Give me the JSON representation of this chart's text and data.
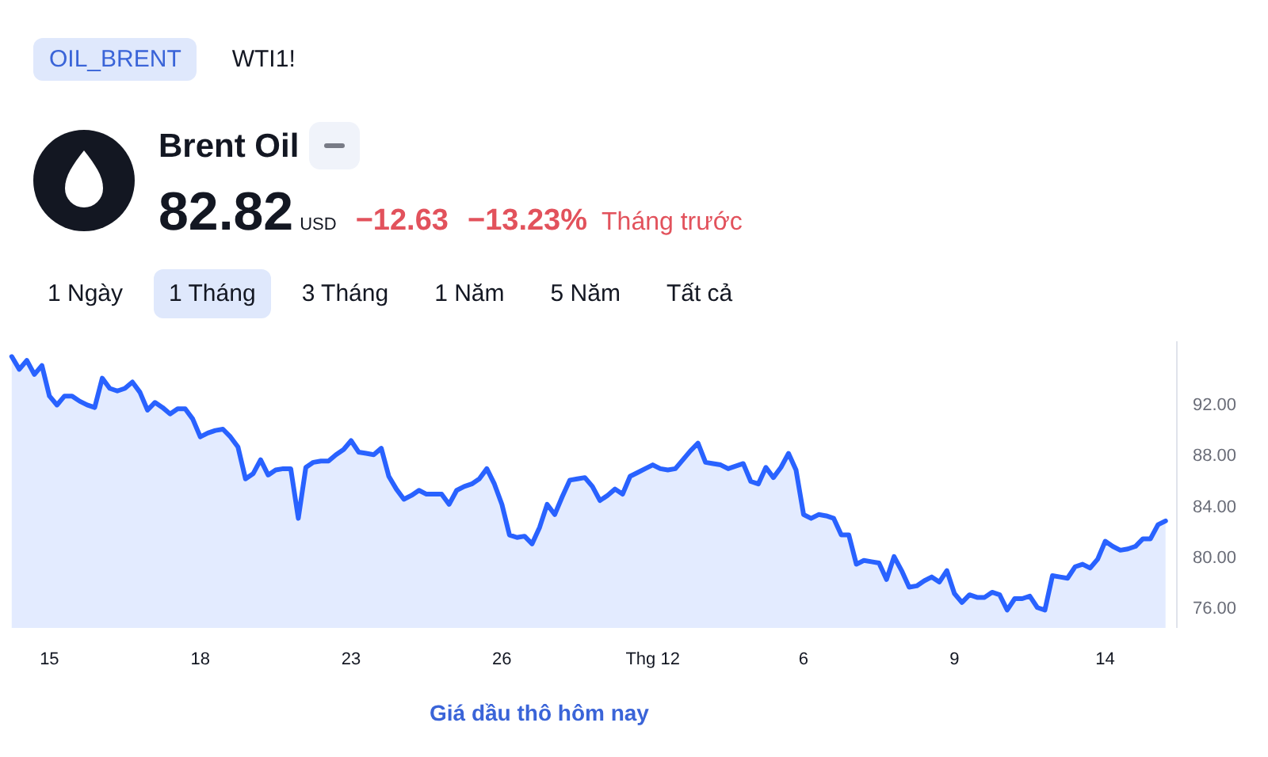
{
  "chart_data": {
    "type": "area",
    "title": "Brent Oil",
    "annotations": [
      "OIL_BRENT",
      "WTI1!",
      "82.82",
      "USD",
      "−12.63",
      "−13.23%",
      "Tháng trước",
      "1 Ngày",
      "1 Tháng",
      "3 Tháng",
      "1 Năm",
      "5 Năm",
      "Tất cả",
      "Giá dầu thô hôm nay"
    ],
    "color": "#2962ff",
    "grid": false,
    "ylim": [
      74.4,
      96.9
    ],
    "yticks": [
      {
        "value": 76,
        "label": "76.00"
      },
      {
        "value": 80,
        "label": "80.00"
      },
      {
        "value": 84,
        "label": "84.00"
      },
      {
        "value": 88,
        "label": "88.00"
      },
      {
        "value": 92,
        "label": "92.00"
      }
    ],
    "categories": [
      null,
      null,
      null,
      null,
      null,
      "15",
      null,
      null,
      null,
      null,
      null,
      null,
      null,
      null,
      null,
      null,
      null,
      null,
      null,
      null,
      null,
      null,
      null,
      null,
      null,
      "18",
      null,
      null,
      null,
      null,
      null,
      null,
      null,
      null,
      null,
      null,
      null,
      null,
      null,
      null,
      null,
      null,
      null,
      null,
      null,
      "23",
      null,
      null,
      null,
      null,
      null,
      null,
      null,
      null,
      null,
      null,
      null,
      null,
      null,
      null,
      null,
      null,
      null,
      null,
      null,
      "26",
      null,
      null,
      null,
      null,
      null,
      null,
      null,
      null,
      null,
      null,
      null,
      null,
      null,
      null,
      null,
      null,
      null,
      null,
      null,
      "Thg 12",
      null,
      null,
      null,
      null,
      null,
      null,
      null,
      null,
      null,
      null,
      null,
      null,
      null,
      null,
      null,
      null,
      null,
      null,
      null,
      "6",
      null,
      null,
      null,
      null,
      null,
      null,
      null,
      null,
      null,
      null,
      null,
      null,
      null,
      null,
      null,
      null,
      null,
      null,
      null,
      "9",
      null,
      null,
      null,
      null,
      null,
      null,
      null,
      null,
      null,
      null,
      null,
      null,
      null,
      null,
      null,
      null,
      null,
      null,
      null,
      "14",
      null,
      null,
      null,
      null,
      null,
      null,
      null,
      null
    ],
    "values": [
      95.7,
      94.7,
      95.4,
      94.3,
      95.0,
      92.6,
      91.9,
      92.6,
      92.6,
      92.2,
      91.9,
      91.7,
      94.0,
      93.2,
      93.0,
      93.2,
      93.7,
      92.9,
      91.5,
      92.1,
      91.7,
      91.2,
      91.6,
      91.6,
      90.8,
      89.4,
      89.7,
      89.9,
      90.0,
      89.4,
      88.6,
      86.1,
      86.5,
      87.6,
      86.4,
      86.8,
      86.9,
      86.9,
      83.0,
      87.0,
      87.4,
      87.5,
      87.5,
      88.0,
      88.4,
      89.1,
      88.2,
      88.1,
      88.0,
      88.5,
      86.3,
      85.3,
      84.5,
      84.8,
      85.2,
      84.9,
      84.9,
      84.9,
      84.1,
      85.2,
      85.5,
      85.7,
      86.1,
      86.9,
      85.7,
      84.1,
      81.7,
      81.5,
      81.6,
      81.0,
      82.3,
      84.1,
      83.3,
      84.7,
      86.0,
      86.1,
      86.2,
      85.5,
      84.4,
      84.8,
      85.3,
      84.9,
      86.3,
      86.6,
      86.9,
      87.2,
      86.9,
      86.8,
      86.9,
      87.6,
      88.3,
      88.9,
      87.4,
      87.3,
      87.2,
      86.9,
      87.1,
      87.3,
      85.9,
      85.7,
      87.0,
      86.2,
      87.0,
      88.1,
      86.8,
      83.3,
      83.0,
      83.3,
      83.2,
      83.0,
      81.7,
      81.7,
      79.4,
      79.7,
      79.6,
      79.5,
      78.2,
      80.0,
      78.9,
      77.6,
      77.7,
      78.1,
      78.4,
      78.0,
      78.9,
      77.1,
      76.4,
      77.0,
      76.8,
      76.8,
      77.2,
      77.0,
      75.8,
      76.7,
      76.7,
      76.9,
      76.0,
      75.8,
      78.5,
      78.4,
      78.3,
      79.2,
      79.4,
      79.1,
      79.8,
      81.2,
      80.8,
      80.5,
      80.6,
      80.8,
      81.4,
      81.4,
      82.5,
      82.8
    ]
  }
}
